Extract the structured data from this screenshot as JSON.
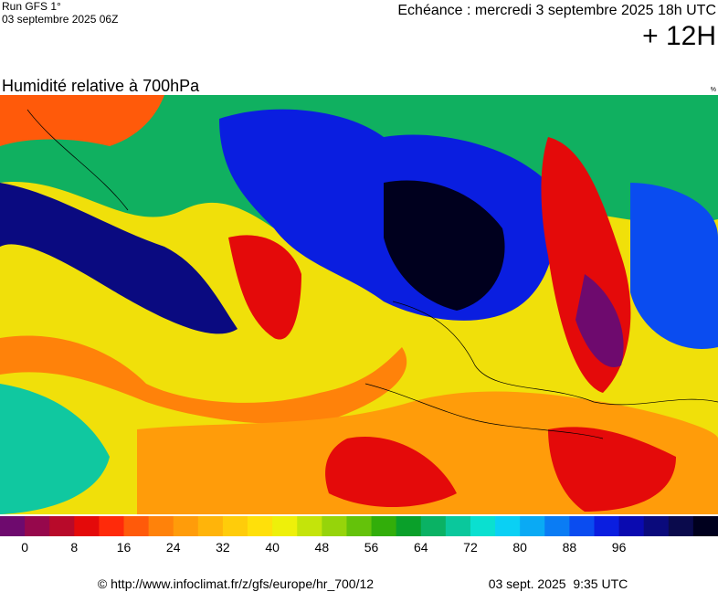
{
  "header": {
    "run": "Run GFS 1°",
    "run_date": "03 septembre 2025 06Z",
    "valid": "Echéance : mercredi 3 septembre 2025 18h UTC",
    "lead": "+ 12H",
    "title": "Humidité relative à 700hPa",
    "unit": "%"
  },
  "colorbar": {
    "ticks": [
      0,
      8,
      16,
      24,
      32,
      40,
      48,
      56,
      64,
      72,
      80,
      88,
      96
    ],
    "colors": [
      "#6e0a6e",
      "#96084c",
      "#b80a2a",
      "#e40a0a",
      "#ff2a0a",
      "#ff5a0a",
      "#ff820a",
      "#ff9c0a",
      "#ffb40a",
      "#ffcc0a",
      "#ffe00a",
      "#eef00a",
      "#c4e40a",
      "#96d40a",
      "#64c20a",
      "#32ae0a",
      "#0aa02a",
      "#0ab264",
      "#0ac89c",
      "#0ae0d0",
      "#0ad0f4",
      "#0aaaf4",
      "#0a7cf4",
      "#0a4cf0",
      "#0a1ee0",
      "#0a0ab0",
      "#0a0a7c",
      "#0a0a4c",
      "#00001e"
    ]
  },
  "footer": {
    "source": "© http://www.infoclimat.fr/z/gfs/europe/hr_700/12",
    "generated": "03 sept. 2025  9:35 UTC"
  }
}
